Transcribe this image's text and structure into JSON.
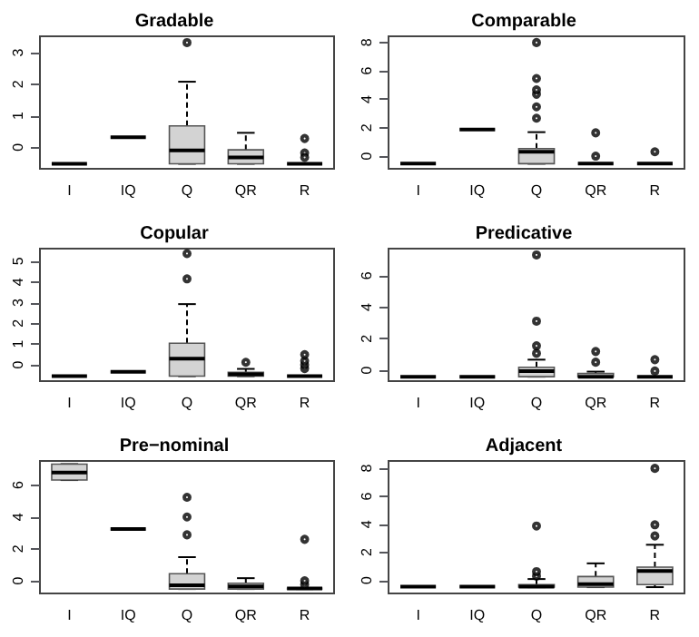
{
  "chart_data": [
    {
      "type": "box",
      "title": "Gradable",
      "categories": [
        "I",
        "IQ",
        "Q",
        "QR",
        "R"
      ],
      "color": "#d3d3d3",
      "ylim": [
        -0.68,
        3.52
      ],
      "yticks": [
        0,
        1,
        2,
        3
      ],
      "grid": false,
      "boxes": [
        {
          "low": -0.52,
          "q1": -0.52,
          "median": -0.52,
          "q3": -0.52,
          "high": -0.52
        },
        {
          "low": 0.32,
          "q1": 0.32,
          "median": 0.32,
          "q3": 0.32,
          "high": 0.32
        },
        {
          "low": -0.52,
          "q1": -0.52,
          "median": -0.1,
          "q3": 0.68,
          "high": 2.08,
          "outliers": [
            3.32
          ]
        },
        {
          "low": -0.52,
          "q1": -0.52,
          "median": -0.32,
          "q3": -0.08,
          "high": 0.46
        },
        {
          "low": -0.52,
          "q1": -0.52,
          "median": -0.52,
          "q3": -0.52,
          "high": -0.52,
          "outliers": [
            0.28,
            -0.18,
            -0.32
          ]
        }
      ]
    },
    {
      "type": "box",
      "title": "Comparable",
      "categories": [
        "I",
        "IQ",
        "Q",
        "QR",
        "R"
      ],
      "color": "#d3d3d3",
      "ylim": [
        -0.89,
        8.44
      ],
      "yticks": [
        0,
        2,
        4,
        6,
        8
      ],
      "grid": false,
      "boxes": [
        {
          "low": -0.53,
          "q1": -0.53,
          "median": -0.53,
          "q3": -0.53,
          "high": -0.53
        },
        {
          "low": 1.87,
          "q1": 1.87,
          "median": 1.87,
          "q3": 1.87,
          "high": 1.87
        },
        {
          "low": -0.53,
          "q1": -0.53,
          "median": 0.31,
          "q3": 0.53,
          "high": 1.69,
          "outliers": [
            2.67,
            3.47,
            4.36,
            4.67,
            5.47,
            8.0
          ]
        },
        {
          "low": -0.53,
          "q1": -0.53,
          "median": -0.53,
          "q3": -0.53,
          "high": -0.53,
          "outliers": [
            0.0,
            1.64
          ]
        },
        {
          "low": -0.53,
          "q1": -0.53,
          "median": -0.53,
          "q3": -0.53,
          "high": -0.53,
          "outliers": [
            0.31
          ]
        }
      ]
    },
    {
      "type": "box",
      "title": "Copular",
      "categories": [
        "I",
        "IQ",
        "Q",
        "QR",
        "R"
      ],
      "color": "#d3d3d3",
      "ylim": [
        -0.79,
        5.61
      ],
      "yticks": [
        0,
        1,
        2,
        3,
        4,
        5
      ],
      "grid": false,
      "boxes": [
        {
          "low": -0.55,
          "q1": -0.55,
          "median": -0.55,
          "q3": -0.55,
          "high": -0.55
        },
        {
          "low": -0.34,
          "q1": -0.34,
          "median": -0.34,
          "q3": -0.34,
          "high": -0.34
        },
        {
          "low": -0.55,
          "q1": -0.55,
          "median": 0.3,
          "q3": 1.04,
          "high": 2.93,
          "outliers": [
            4.15,
            5.37
          ]
        },
        {
          "low": -0.55,
          "q1": -0.55,
          "median": -0.46,
          "q3": -0.37,
          "high": -0.2,
          "outliers": [
            0.12
          ]
        },
        {
          "low": -0.55,
          "q1": -0.55,
          "median": -0.55,
          "q3": -0.55,
          "high": -0.55,
          "outliers": [
            -0.18,
            0.0,
            0.18,
            0.49
          ]
        }
      ]
    },
    {
      "type": "box",
      "title": "Predicative",
      "categories": [
        "I",
        "IQ",
        "Q",
        "QR",
        "R"
      ],
      "color": "#d3d3d3",
      "ylim": [
        -0.68,
        7.72
      ],
      "yticks": [
        0,
        2,
        4,
        6
      ],
      "grid": false,
      "boxes": [
        {
          "low": -0.4,
          "q1": -0.4,
          "median": -0.4,
          "q3": -0.4,
          "high": -0.4
        },
        {
          "low": -0.4,
          "q1": -0.4,
          "median": -0.4,
          "q3": -0.4,
          "high": -0.4
        },
        {
          "low": -0.4,
          "q1": -0.4,
          "median": -0.04,
          "q3": 0.2,
          "high": 0.68,
          "outliers": [
            1.08,
            1.56,
            3.12,
            7.32
          ]
        },
        {
          "low": -0.4,
          "q1": -0.4,
          "median": -0.4,
          "q3": -0.2,
          "high": -0.08,
          "outliers": [
            0.52,
            1.2
          ]
        },
        {
          "low": -0.4,
          "q1": -0.4,
          "median": -0.4,
          "q3": -0.4,
          "high": -0.4,
          "outliers": [
            -0.04,
            0.68
          ]
        }
      ]
    },
    {
      "type": "box",
      "title": "Pre−nominal",
      "categories": [
        "I",
        "IQ",
        "Q",
        "QR",
        "R"
      ],
      "color": "#d3d3d3",
      "ylim": [
        -0.8,
        7.52
      ],
      "yticks": [
        0,
        2,
        4,
        6
      ],
      "grid": false,
      "boxes": [
        {
          "low": 6.32,
          "q1": 6.32,
          "median": 6.8,
          "q3": 7.32,
          "high": 7.32
        },
        {
          "low": 3.24,
          "q1": 3.24,
          "median": 3.24,
          "q3": 3.24,
          "high": 3.24
        },
        {
          "low": -0.52,
          "q1": -0.52,
          "median": -0.28,
          "q3": 0.44,
          "high": 1.48,
          "outliers": [
            2.88,
            4.0,
            5.24
          ]
        },
        {
          "low": -0.52,
          "q1": -0.52,
          "median": -0.36,
          "q3": -0.16,
          "high": 0.16
        },
        {
          "low": -0.52,
          "q1": -0.52,
          "median": -0.48,
          "q3": -0.48,
          "high": -0.48,
          "outliers": [
            -0.24,
            0.0,
            2.6
          ]
        }
      ]
    },
    {
      "type": "box",
      "title": "Adjacent",
      "categories": [
        "I",
        "IQ",
        "Q",
        "QR",
        "R"
      ],
      "color": "#d3d3d3",
      "ylim": [
        -0.94,
        8.53
      ],
      "yticks": [
        0,
        2,
        4,
        6,
        8
      ],
      "grid": false,
      "boxes": [
        {
          "low": -0.45,
          "q1": -0.45,
          "median": -0.45,
          "q3": -0.45,
          "high": -0.45
        },
        {
          "low": -0.45,
          "q1": -0.45,
          "median": -0.45,
          "q3": -0.45,
          "high": -0.45
        },
        {
          "low": -0.49,
          "q1": -0.49,
          "median": -0.45,
          "q3": -0.31,
          "high": 0.09,
          "outliers": [
            0.3,
            0.62,
            3.88
          ]
        },
        {
          "low": -0.49,
          "q1": -0.49,
          "median": -0.27,
          "q3": 0.27,
          "high": 1.21
        },
        {
          "low": -0.49,
          "q1": -0.31,
          "median": 0.67,
          "q3": 0.94,
          "high": 2.54,
          "outliers": [
            3.17,
            3.97,
            8.0
          ]
        }
      ]
    }
  ]
}
